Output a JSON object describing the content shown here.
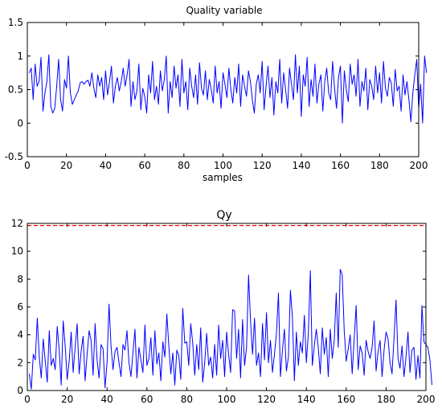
{
  "chart_data": [
    {
      "type": "line",
      "title": "Quality variable",
      "xlabel": "samples",
      "ylabel": "",
      "xlim": [
        0,
        200
      ],
      "ylim": [
        -0.5,
        1.5
      ],
      "xticks": [
        "0",
        "20",
        "40",
        "60",
        "80",
        "100",
        "120",
        "140",
        "160",
        "180",
        "200"
      ],
      "yticks": [
        "-0.5",
        "0",
        "0.5",
        "1",
        "1.5"
      ],
      "grid": false,
      "line_color": "#0000ff",
      "series": [
        {
          "name": "",
          "x_start": 1,
          "x_step": 1,
          "values": [
            0.75,
            0.82,
            0.35,
            0.88,
            0.55,
            0.62,
            0.98,
            0.18,
            0.45,
            0.62,
            1.02,
            0.25,
            0.15,
            0.22,
            0.55,
            0.95,
            0.35,
            0.18,
            0.65,
            0.52,
            1.0,
            0.45,
            0.28,
            0.35,
            0.42,
            0.48,
            0.6,
            0.62,
            0.58,
            0.62,
            0.64,
            0.55,
            0.75,
            0.52,
            0.38,
            0.72,
            0.55,
            0.68,
            0.35,
            0.78,
            0.42,
            0.62,
            0.85,
            0.3,
            0.55,
            0.68,
            0.48,
            0.62,
            0.82,
            0.55,
            0.72,
            0.95,
            0.25,
            0.62,
            0.35,
            0.48,
            0.88,
            0.2,
            0.52,
            0.4,
            0.15,
            0.72,
            0.45,
            0.92,
            0.35,
            0.55,
            0.28,
            0.78,
            0.48,
            0.65,
            1.0,
            0.15,
            0.62,
            0.38,
            0.85,
            0.52,
            0.72,
            0.25,
            0.95,
            0.45,
            0.62,
            0.2,
            0.82,
            0.55,
            0.38,
            0.72,
            0.28,
            0.9,
            0.52,
            0.42,
            0.78,
            0.35,
            0.65,
            0.5,
            0.3,
            0.85,
            0.45,
            0.62,
            0.22,
            0.75,
            0.58,
            0.38,
            0.82,
            0.5,
            0.3,
            0.68,
            0.45,
            0.88,
            0.25,
            0.72,
            0.55,
            0.4,
            0.78,
            0.62,
            0.35,
            0.15,
            0.58,
            0.72,
            0.45,
            0.92,
            0.2,
            0.55,
            0.85,
            0.38,
            0.68,
            0.12,
            0.62,
            0.45,
            0.95,
            0.3,
            0.75,
            0.5,
            0.22,
            0.82,
            0.58,
            0.35,
            1.02,
            0.45,
            0.85,
            0.1,
            0.72,
            0.55,
            0.98,
            0.25,
            0.65,
            0.4,
            0.88,
            0.3,
            0.58,
            0.72,
            0.18,
            0.62,
            0.82,
            0.45,
            0.35,
            0.92,
            0.52,
            0.22,
            0.68,
            0.85,
            0.0,
            0.78,
            0.5,
            0.32,
            0.88,
            0.58,
            0.72,
            0.4,
            0.95,
            0.25,
            0.62,
            0.48,
            0.82,
            0.2,
            0.65,
            0.55,
            0.35,
            0.85,
            0.45,
            0.75,
            0.3,
            0.92,
            0.52,
            0.4,
            0.68,
            0.6,
            0.25,
            0.8,
            0.48,
            0.55,
            0.18,
            0.72,
            0.42,
            0.62,
            0.35,
            0.02,
            0.45,
            0.72,
            0.95,
            0.22,
            0.58,
            0.0,
            1.0,
            0.75
          ]
        }
      ]
    },
    {
      "type": "line",
      "title": "Qy",
      "xlabel": "",
      "ylabel": "",
      "xlim": [
        0,
        200
      ],
      "ylim": [
        0,
        12
      ],
      "xticks": [
        "0",
        "20",
        "40",
        "60",
        "80",
        "100",
        "120",
        "140",
        "160",
        "180",
        "200"
      ],
      "yticks": [
        "0",
        "2",
        "4",
        "6",
        "8",
        "10",
        "12"
      ],
      "grid": false,
      "line_color": "#0000ff",
      "threshold": {
        "value": 11.85,
        "color": "#ff0000",
        "style": "dashed"
      },
      "series": [
        {
          "name": "",
          "x_start": 1,
          "x_step": 1,
          "values": [
            1.2,
            0.1,
            2.6,
            2.2,
            5.2,
            2.4,
            0.9,
            3.7,
            2.1,
            0.6,
            4.3,
            1.8,
            2.3,
            1.5,
            4.6,
            2.9,
            0.4,
            5.0,
            3.2,
            0.8,
            2.1,
            4.2,
            1.3,
            3.1,
            4.8,
            1.2,
            2.8,
            3.9,
            0.7,
            2.6,
            4.3,
            3.6,
            1.1,
            4.8,
            2.2,
            0.9,
            3.3,
            3.0,
            0.2,
            2.0,
            6.2,
            3.2,
            1.5,
            2.8,
            3.1,
            2.0,
            1.0,
            3.3,
            2.9,
            4.3,
            2.0,
            1.0,
            2.7,
            4.4,
            0.9,
            3.1,
            2.2,
            1.3,
            4.7,
            1.8,
            2.3,
            3.8,
            1.1,
            4.3,
            1.9,
            2.7,
            0.7,
            3.5,
            2.4,
            5.5,
            3.2,
            1.2,
            2.7,
            0.4,
            2.9,
            2.5,
            0.8,
            5.9,
            3.4,
            3.5,
            1.8,
            4.8,
            3.4,
            1.1,
            3.3,
            1.5,
            4.5,
            0.6,
            2.0,
            4.1,
            1.8,
            2.4,
            0.9,
            3.3,
            1.1,
            4.7,
            2.3,
            3.6,
            1.0,
            4.2,
            2.6,
            1.3,
            5.8,
            5.7,
            2.3,
            4.4,
            0.9,
            5.1,
            1.8,
            3.1,
            8.3,
            5.0,
            2.6,
            5.2,
            1.8,
            2.7,
            1.0,
            4.8,
            2.2,
            5.6,
            2.0,
            3.6,
            1.3,
            2.6,
            4.1,
            7.0,
            1.0,
            2.9,
            4.4,
            1.4,
            2.4,
            7.2,
            5.3,
            0.7,
            4.2,
            1.8,
            3.5,
            2.7,
            5.4,
            2.0,
            4.1,
            8.6,
            1.8,
            3.2,
            4.4,
            3.1,
            1.2,
            4.5,
            2.6,
            3.8,
            1.0,
            4.4,
            2.3,
            3.6,
            7.0,
            3.1,
            8.7,
            8.3,
            4.3,
            2.1,
            3.0,
            4.0,
            1.2,
            3.7,
            6.1,
            1.5,
            3.2,
            2.7,
            1.1,
            3.6,
            2.8,
            2.3,
            3.1,
            5.0,
            1.4,
            2.8,
            3.6,
            1.0,
            2.9,
            4.2,
            3.7,
            2.0,
            1.2,
            3.8,
            6.5,
            2.3,
            1.6,
            3.2,
            1.0,
            2.4,
            4.2,
            1.3,
            2.9,
            3.1,
            0.8,
            2.5,
            0.9,
            6.1,
            3.5,
            3.3,
            3.1,
            2.2,
            0.4
          ]
        }
      ]
    }
  ]
}
